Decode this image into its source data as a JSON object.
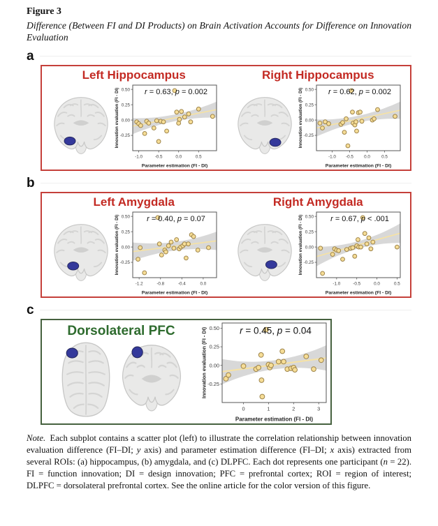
{
  "figure": {
    "label": "Figure 3",
    "caption": "Difference (Between FI and DI Products) on Brain Activation Accounts for Difference on Innovation Evaluation"
  },
  "colors": {
    "red_title": "#c32a23",
    "red_border": "#c5403a",
    "green_title": "#2e6b2e",
    "green_border": "#46613f",
    "point_fill": "#f6dd96",
    "point_stroke": "#9d8349",
    "trend_line": "#f6e2a4",
    "ci_band": "#d8d8d8",
    "brain_fill": "#e9e9e8",
    "brain_line": "#d4d4d3",
    "brain_outline": "#c6c6c5",
    "ventricle": "#d0d0cf",
    "roi_blob": "#34399b",
    "roi_blob_edge": "#26295f",
    "plot_border": "#555555",
    "tick_text": "#3c3c3c"
  },
  "axes": {
    "x_label": "Parameter estimation (FI - DI)",
    "y_label": "Innovation evaluation (FI - DI)"
  },
  "panels": [
    {
      "letter": "a",
      "theme": "red",
      "wide": false,
      "subpanels": [
        {
          "title": "Left Hippocampus",
          "chart": 0,
          "brains": [
            {
              "view": "coronal",
              "blob_x": 0.33,
              "blob_y": 0.72
            }
          ]
        },
        {
          "title": "Right Hippocampus",
          "chart": 1,
          "brains": [
            {
              "view": "coronal",
              "blob_x": 0.66,
              "blob_y": 0.74
            }
          ]
        }
      ]
    },
    {
      "letter": "b",
      "theme": "red",
      "wide": false,
      "subpanels": [
        {
          "title": "Left Amygdala",
          "chart": 2,
          "brains": [
            {
              "view": "coronal",
              "blob_x": 0.38,
              "blob_y": 0.69
            }
          ]
        },
        {
          "title": "Right Amygdala",
          "chart": 3,
          "brains": [
            {
              "view": "coronal",
              "blob_x": 0.6,
              "blob_y": 0.67
            }
          ]
        }
      ]
    },
    {
      "letter": "c",
      "theme": "green",
      "wide": true,
      "subpanels": [
        {
          "title": "Dorsolateral PFC",
          "chart": 4,
          "brains": [
            {
              "view": "axial",
              "blob_x": 0.27,
              "blob_y": 0.17
            },
            {
              "view": "coronal2",
              "blob_x": 0.3,
              "blob_y": 0.16
            }
          ]
        }
      ]
    }
  ],
  "chart_data": [
    {
      "type": "scatter",
      "region": "Left Hippocampus",
      "stats": {
        "r": "0.63",
        "p_op": "=",
        "p": "0.002"
      },
      "annotation": "r = 0.63, p = 0.002",
      "xlabel": "Parameter estimation (FI - DI)",
      "ylabel": "Innovation evaluation (FI - DI)",
      "xlim": [
        -1.15,
        0.95
      ],
      "ylim": [
        -0.5,
        0.57
      ],
      "xticks": [
        -1.0,
        -0.5,
        0.0,
        0.5
      ],
      "xtick_labels": [
        "-1.0",
        "-0.5",
        "0.0",
        "0.5"
      ],
      "yticks": [
        0.5,
        0.25,
        0.0,
        -0.25
      ],
      "ytick_labels": [
        "0.50",
        "0.25",
        "0.00",
        "-0.25"
      ],
      "points": [
        [
          -1.05,
          -0.03
        ],
        [
          -1.0,
          -0.06
        ],
        [
          -0.95,
          -0.09
        ],
        [
          -0.85,
          -0.22
        ],
        [
          -0.8,
          -0.02
        ],
        [
          -0.75,
          -0.05
        ],
        [
          -0.62,
          -0.13
        ],
        [
          -0.55,
          -0.01
        ],
        [
          -0.5,
          -0.35
        ],
        [
          -0.45,
          -0.02
        ],
        [
          -0.38,
          -0.03
        ],
        [
          -0.3,
          -0.18
        ],
        [
          -0.1,
          0.48
        ],
        [
          -0.05,
          0.13
        ],
        [
          0.0,
          -0.05
        ],
        [
          0.02,
          0.01
        ],
        [
          0.07,
          0.14
        ],
        [
          0.15,
          0.05
        ],
        [
          0.25,
          0.1
        ],
        [
          0.3,
          -0.03
        ],
        [
          0.5,
          0.18
        ],
        [
          0.85,
          0.06
        ]
      ],
      "trend": {
        "x0": -1.15,
        "y0": -0.1,
        "x1": 0.95,
        "y1": 0.17
      },
      "band": {
        "mid": 0.055,
        "end": 0.13
      }
    },
    {
      "type": "scatter",
      "region": "Right Hippocampus",
      "stats": {
        "r": "0.62",
        "p_op": "=",
        "p": "0.002"
      },
      "annotation": "r = 0.62, p = 0.002",
      "xlabel": "Parameter estimation (FI - DI)",
      "ylabel": "Innovation evaluation (FI - DI)",
      "xlim": [
        -1.45,
        0.95
      ],
      "ylim": [
        -0.5,
        0.57
      ],
      "xticks": [
        -1.0,
        -0.5,
        0.0,
        0.5
      ],
      "xtick_labels": [
        "-1.0",
        "-0.5",
        "0.0",
        "0.5"
      ],
      "yticks": [
        0.5,
        0.25,
        0.0,
        -0.25
      ],
      "ytick_labels": [
        "0.50",
        "0.25",
        "0.00",
        "-0.25"
      ],
      "points": [
        [
          -1.35,
          -0.05
        ],
        [
          -1.28,
          -0.13
        ],
        [
          -1.2,
          -0.03
        ],
        [
          -1.1,
          -0.06
        ],
        [
          -0.75,
          -0.07
        ],
        [
          -0.7,
          -0.04
        ],
        [
          -0.65,
          -0.2
        ],
        [
          -0.6,
          0.02
        ],
        [
          -0.55,
          -0.42
        ],
        [
          -0.45,
          0.48
        ],
        [
          -0.42,
          0.13
        ],
        [
          -0.4,
          -0.05
        ],
        [
          -0.35,
          -0.08
        ],
        [
          -0.32,
          -0.03
        ],
        [
          -0.3,
          -0.18
        ],
        [
          -0.25,
          0.12
        ],
        [
          -0.2,
          0.13
        ],
        [
          -0.15,
          -0.02
        ],
        [
          0.15,
          0.0
        ],
        [
          0.2,
          0.02
        ],
        [
          0.3,
          0.17
        ],
        [
          0.8,
          0.06
        ]
      ],
      "trend": {
        "x0": -1.45,
        "y0": -0.13,
        "x1": 0.95,
        "y1": 0.16
      },
      "band": {
        "mid": 0.055,
        "end": 0.14
      }
    },
    {
      "type": "scatter",
      "region": "Left Amygdala",
      "stats": {
        "r": "0.40",
        "p_op": "=",
        "p": "0.07"
      },
      "annotation": "r = 0.40, p = 0.07",
      "xlabel": "Parameter estimation (FI - DI)",
      "ylabel": "Innovation evaluation (FI - DI)",
      "xlim": [
        -1.32,
        0.25
      ],
      "ylim": [
        -0.5,
        0.57
      ],
      "xticks": [
        -1.2,
        -0.8,
        -0.4,
        0.0
      ],
      "xtick_labels": [
        "-1.2",
        "-0.8",
        "-0.4",
        "0.0"
      ],
      "yticks": [
        0.5,
        0.25,
        0.0,
        -0.25
      ],
      "ytick_labels": [
        "0.50",
        "0.25",
        "0.00",
        "-0.25"
      ],
      "points": [
        [
          -1.22,
          -0.2
        ],
        [
          -1.18,
          -0.01
        ],
        [
          -1.1,
          -0.42
        ],
        [
          -0.85,
          0.48
        ],
        [
          -0.82,
          0.05
        ],
        [
          -0.78,
          -0.13
        ],
        [
          -0.72,
          -0.05
        ],
        [
          -0.7,
          -0.08
        ],
        [
          -0.65,
          0.02
        ],
        [
          -0.6,
          0.08
        ],
        [
          -0.55,
          -0.02
        ],
        [
          -0.5,
          0.12
        ],
        [
          -0.45,
          -0.03
        ],
        [
          -0.42,
          0.0
        ],
        [
          -0.38,
          0.02
        ],
        [
          -0.35,
          0.05
        ],
        [
          -0.32,
          -0.18
        ],
        [
          -0.28,
          0.05
        ],
        [
          -0.22,
          0.2
        ],
        [
          -0.18,
          0.17
        ],
        [
          -0.1,
          -0.05
        ],
        [
          0.1,
          -0.01
        ]
      ],
      "trend": {
        "x0": -1.32,
        "y0": -0.075,
        "x1": 0.25,
        "y1": 0.1
      },
      "band": {
        "mid": 0.07,
        "end": 0.15
      }
    },
    {
      "type": "scatter",
      "region": "Right Amygdala",
      "stats": {
        "r": "0.67",
        "p_op": "<",
        "p": ".001"
      },
      "annotation": "r = 0.67, p < .001",
      "xlabel": "Parameter estimation (FI - DI)",
      "ylabel": "Innovation evaluation (FI - DI)",
      "xlim": [
        -1.5,
        0.58
      ],
      "ylim": [
        -0.5,
        0.57
      ],
      "xticks": [
        -1.0,
        -0.5,
        0.0,
        0.5
      ],
      "xtick_labels": [
        "-1.0",
        "-0.5",
        "0.0",
        "0.5"
      ],
      "yticks": [
        0.5,
        0.25,
        0.0,
        -0.25
      ],
      "ytick_labels": [
        "0.50",
        "0.25",
        "0.00",
        "-0.25"
      ],
      "points": [
        [
          -1.4,
          -0.02
        ],
        [
          -1.35,
          -0.43
        ],
        [
          -1.1,
          -0.12
        ],
        [
          -1.05,
          -0.03
        ],
        [
          -1.0,
          -0.05
        ],
        [
          -0.95,
          -0.06
        ],
        [
          -0.85,
          -0.2
        ],
        [
          -0.75,
          -0.04
        ],
        [
          -0.65,
          -0.02
        ],
        [
          -0.6,
          -0.01
        ],
        [
          -0.55,
          -0.15
        ],
        [
          -0.5,
          0.02
        ],
        [
          -0.47,
          0.12
        ],
        [
          -0.45,
          0.0
        ],
        [
          -0.4,
          0.0
        ],
        [
          -0.35,
          0.48
        ],
        [
          -0.3,
          0.22
        ],
        [
          -0.25,
          0.05
        ],
        [
          -0.2,
          0.15
        ],
        [
          -0.15,
          -0.03
        ],
        [
          -0.1,
          0.08
        ],
        [
          0.5,
          0.0
        ]
      ],
      "trend": {
        "x0": -1.5,
        "y0": -0.155,
        "x1": 0.58,
        "y1": 0.225
      },
      "band": {
        "mid": 0.06,
        "end": 0.16
      }
    },
    {
      "type": "scatter",
      "region": "Dorsolateral PFC",
      "stats": {
        "r": "0.45",
        "p_op": "=",
        "p": "0.04"
      },
      "annotation": "r = 0.45, p = 0.04",
      "xlabel": "Parameter estimation (FI - DI)",
      "ylabel": "Innovation evaluation (FI - DI)",
      "xlim": [
        -0.85,
        3.3
      ],
      "ylim": [
        -0.5,
        0.57
      ],
      "xticks": [
        0,
        1,
        2,
        3
      ],
      "xtick_labels": [
        "0",
        "1",
        "2",
        "3"
      ],
      "yticks": [
        0.5,
        0.25,
        0.0,
        -0.25
      ],
      "ytick_labels": [
        "0.50",
        "0.25",
        "0.00",
        "-0.25"
      ],
      "points": [
        [
          -0.7,
          -0.18
        ],
        [
          -0.6,
          -0.13
        ],
        [
          0.0,
          -0.01
        ],
        [
          0.5,
          -0.05
        ],
        [
          0.6,
          -0.03
        ],
        [
          0.7,
          0.14
        ],
        [
          0.72,
          -0.2
        ],
        [
          0.75,
          -0.42
        ],
        [
          0.9,
          0.48
        ],
        [
          1.0,
          0.01
        ],
        [
          1.05,
          -0.03
        ],
        [
          1.1,
          0.0
        ],
        [
          1.4,
          0.05
        ],
        [
          1.55,
          0.19
        ],
        [
          1.6,
          0.05
        ],
        [
          1.75,
          -0.05
        ],
        [
          1.9,
          -0.04
        ],
        [
          2.0,
          -0.03
        ],
        [
          2.05,
          -0.06
        ],
        [
          2.5,
          0.12
        ],
        [
          2.8,
          -0.05
        ],
        [
          3.1,
          0.07
        ]
      ],
      "trend": {
        "x0": -0.85,
        "y0": -0.085,
        "x1": 3.3,
        "y1": 0.1
      },
      "band": {
        "mid": 0.06,
        "end": 0.17
      }
    }
  ],
  "note": {
    "segments": [
      {
        "text": "Note.",
        "italic": true
      },
      {
        "text": " Each subplot contains a scatter plot (left) to illustrate the correlation relationship between innovation evaluation difference (FI–DI; ",
        "italic": false
      },
      {
        "text": "y",
        "italic": true
      },
      {
        "text": " axis) and parameter estimation difference (FI–DI; ",
        "italic": false
      },
      {
        "text": "x",
        "italic": true
      },
      {
        "text": " axis) extracted from several ROIs: (a) hippocampus, (b) amygdala, and (c) DLPFC. Each dot represents one participant (",
        "italic": false
      },
      {
        "text": "n",
        "italic": true
      },
      {
        "text": " = 22). FI = function innovation; DI = design innovation; PFC = prefrontal cortex; ROI = region of interest; DLPFC = dorsolateral prefrontal cortex. See the online article for the color version of this figure.",
        "italic": false
      }
    ]
  }
}
